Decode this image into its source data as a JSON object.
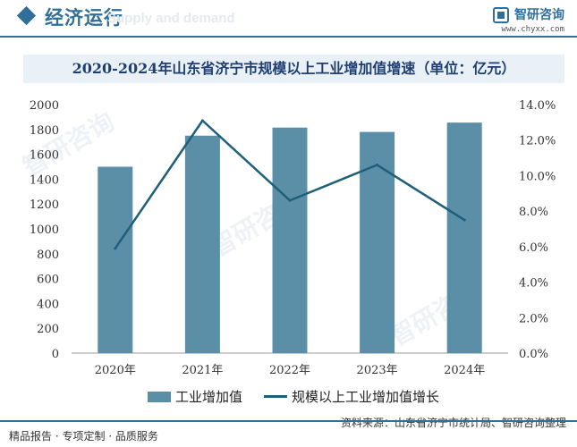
{
  "header": {
    "title": "经济运行",
    "subtitle_ghost": "Supply and demand",
    "logo_name": "智研咨询",
    "logo_url": "www.chyxx.com"
  },
  "watermark_text": "智研咨询",
  "footer": {
    "left": "精品报告 · 专项定制 · 品质服务",
    "source": "资料来源：山东省济宁市统计局、智研咨询整理"
  },
  "colors": {
    "bar": "#5b8fa8",
    "line": "#1f5f7a",
    "accent": "#2f6f9a"
  },
  "chart_data": {
    "type": "bar",
    "title": "2020-2024年山东省济宁市规模以上工业增加值增速（单位：亿元）",
    "categories": [
      "2020年",
      "2021年",
      "2022年",
      "2023年",
      "2024年"
    ],
    "series": [
      {
        "name": "工业增加值",
        "type": "bar",
        "axis": "left",
        "values": [
          1500,
          1750,
          1815,
          1780,
          1855
        ]
      },
      {
        "name": "规模以上工业增加值增长",
        "type": "line",
        "axis": "right",
        "values": [
          5.9,
          13.1,
          8.6,
          10.6,
          7.5
        ]
      }
    ],
    "y_left": {
      "min": 0,
      "max": 2000,
      "step": 200,
      "ticks": [
        "0",
        "200",
        "400",
        "600",
        "800",
        "1000",
        "1200",
        "1400",
        "1600",
        "1800",
        "2000"
      ]
    },
    "y_right": {
      "min": 0,
      "max": 14,
      "step": 2,
      "ticks": [
        "0.0%",
        "2.0%",
        "4.0%",
        "6.0%",
        "8.0%",
        "10.0%",
        "12.0%",
        "14.0%"
      ]
    },
    "grid": false,
    "legend_position": "bottom"
  }
}
